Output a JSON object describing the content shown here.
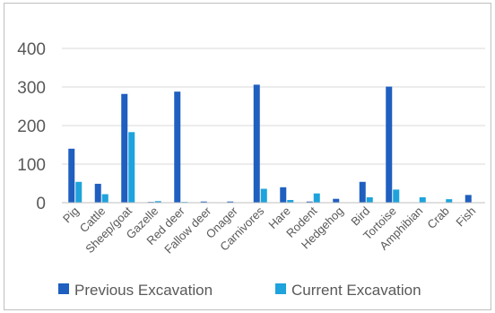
{
  "chart_data": {
    "type": "bar",
    "title": "",
    "xlabel": "",
    "ylabel": "",
    "ylim": [
      0,
      400
    ],
    "yticks": [
      0,
      100,
      200,
      300,
      400
    ],
    "grid": true,
    "legend_position": "bottom",
    "categories": [
      "Pig",
      "Cattle",
      "Sheep/goat",
      "Gazelle",
      "Red deer",
      "Fallow deer",
      "Onager",
      "Carnivores",
      "Hare",
      "Rodent",
      "Hedgehog",
      "Bird",
      "Tortoise",
      "Amphibian",
      "Crab",
      "Fish"
    ],
    "series": [
      {
        "name": "Previous Excavation",
        "color": "#1f5fbf",
        "values": [
          140,
          49,
          282,
          2,
          288,
          3,
          3,
          306,
          40,
          3,
          10,
          54,
          301,
          0,
          0,
          20
        ]
      },
      {
        "name": "Current Excavation",
        "color": "#1ea3dc",
        "values": [
          54,
          22,
          183,
          4,
          2,
          0,
          0,
          36,
          7,
          24,
          0,
          14,
          34,
          14,
          9,
          0
        ]
      }
    ]
  }
}
